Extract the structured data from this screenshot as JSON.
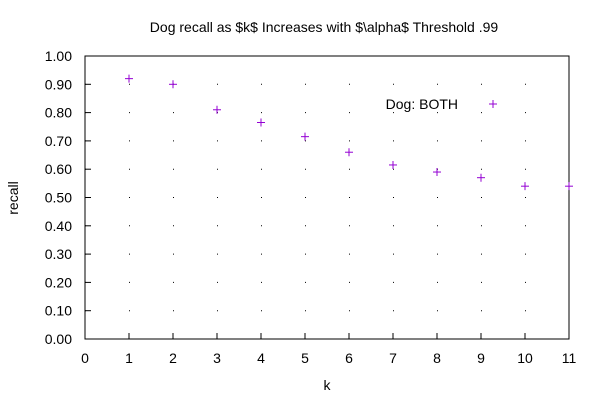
{
  "chart_data": {
    "type": "scatter",
    "title": "Dog recall as $k$ Increases with $\\alpha$ Threshold .99",
    "xlabel": "k",
    "ylabel": "recall",
    "xlim": [
      0,
      11
    ],
    "ylim": [
      0,
      1
    ],
    "x_ticks": [
      "0",
      "1",
      "2",
      "3",
      "4",
      "5",
      "6",
      "7",
      "8",
      "9",
      "10",
      "11"
    ],
    "y_ticks": [
      "0.00",
      "0.10",
      "0.20",
      "0.30",
      "0.40",
      "0.50",
      "0.60",
      "0.70",
      "0.80",
      "0.90",
      "1.00"
    ],
    "grid": "dotted",
    "legend_position": "top-right",
    "marker_color": "#9400d3",
    "series": [
      {
        "name": "Dog: BOTH",
        "marker": "plus",
        "x": [
          1,
          2,
          3,
          4,
          5,
          6,
          7,
          8,
          9,
          10,
          11
        ],
        "y": [
          0.92,
          0.9,
          0.81,
          0.765,
          0.715,
          0.66,
          0.615,
          0.59,
          0.57,
          0.54,
          0.54
        ]
      }
    ]
  }
}
